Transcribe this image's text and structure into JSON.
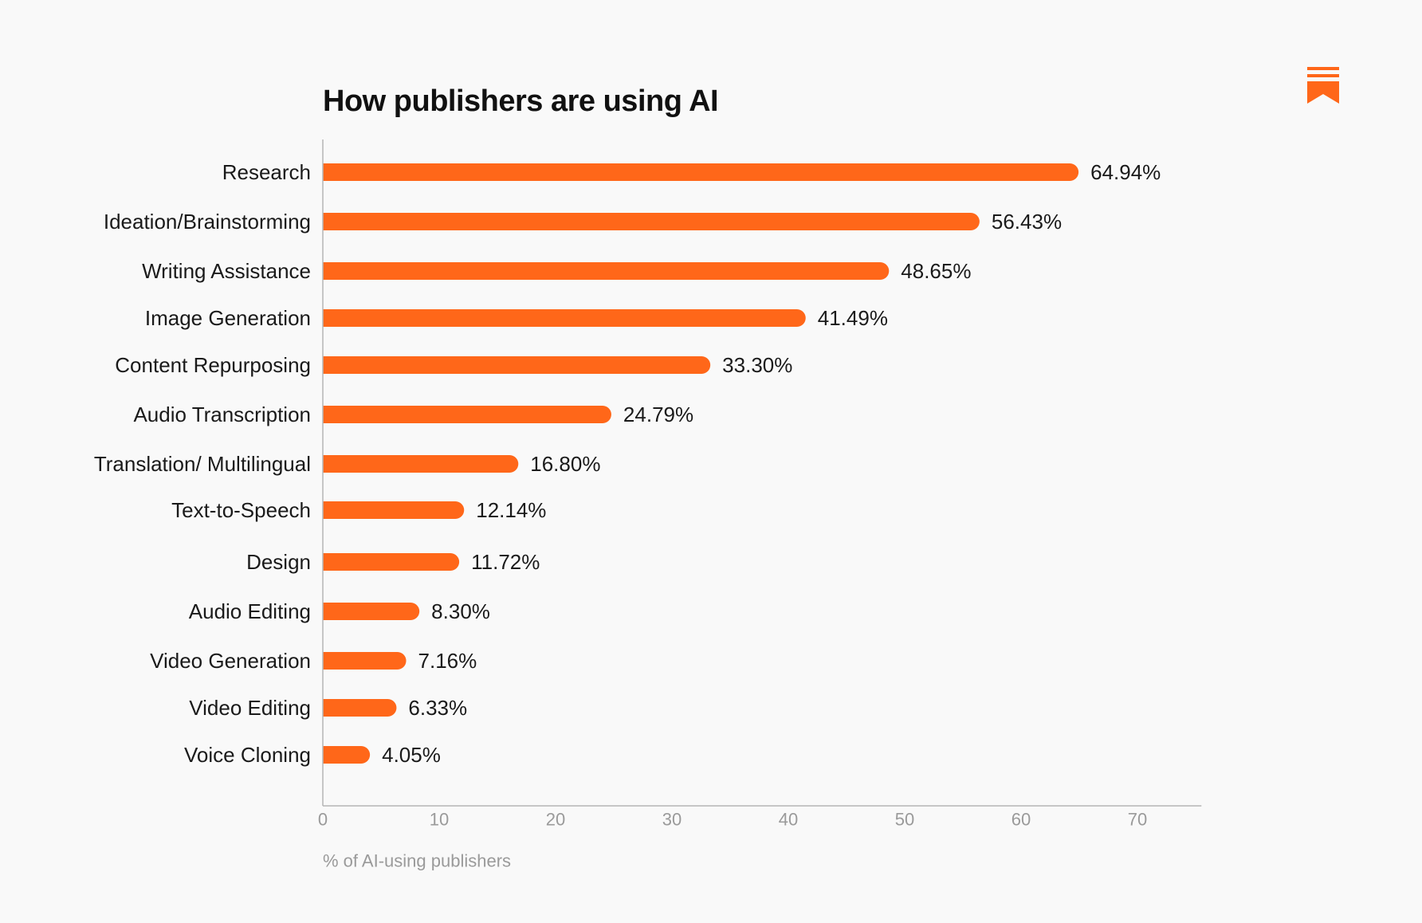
{
  "chart_data": {
    "type": "bar",
    "orientation": "horizontal",
    "title": "How publishers are using AI",
    "xlabel": "% of AI-using publishers",
    "ylabel": "",
    "categories": [
      "Research",
      "Ideation/Brainstorming",
      "Writing Assistance",
      "Image Generation",
      "Content Repurposing",
      "Audio Transcription",
      "Translation/ Multilingual",
      "Text-to-Speech",
      "Design",
      "Audio Editing",
      "Video Generation",
      "Video Editing",
      "Voice Cloning"
    ],
    "values": [
      64.94,
      56.43,
      48.65,
      41.49,
      33.3,
      24.79,
      16.8,
      12.14,
      11.72,
      8.3,
      7.16,
      6.33,
      4.05
    ],
    "value_labels": [
      "64.94%",
      "56.43%",
      "48.65%",
      "41.49%",
      "33.30%",
      "24.79%",
      "16.80%",
      "12.14%",
      "11.72%",
      "8.30%",
      "7.16%",
      "6.33%",
      "4.05%"
    ],
    "xticks": [
      "0",
      "10",
      "20",
      "30",
      "40",
      "50",
      "60",
      "70"
    ],
    "xlim": [
      0,
      75.5
    ],
    "grid": false,
    "legend": "none"
  },
  "colors": {
    "bar": "#ff6719",
    "background": "#f9f9f9",
    "axis": "#b5b5b5",
    "text": "#1a1a1a",
    "muted_text": "#9a9a9a"
  },
  "logo": {
    "icon": "bookmark-logo-icon"
  }
}
